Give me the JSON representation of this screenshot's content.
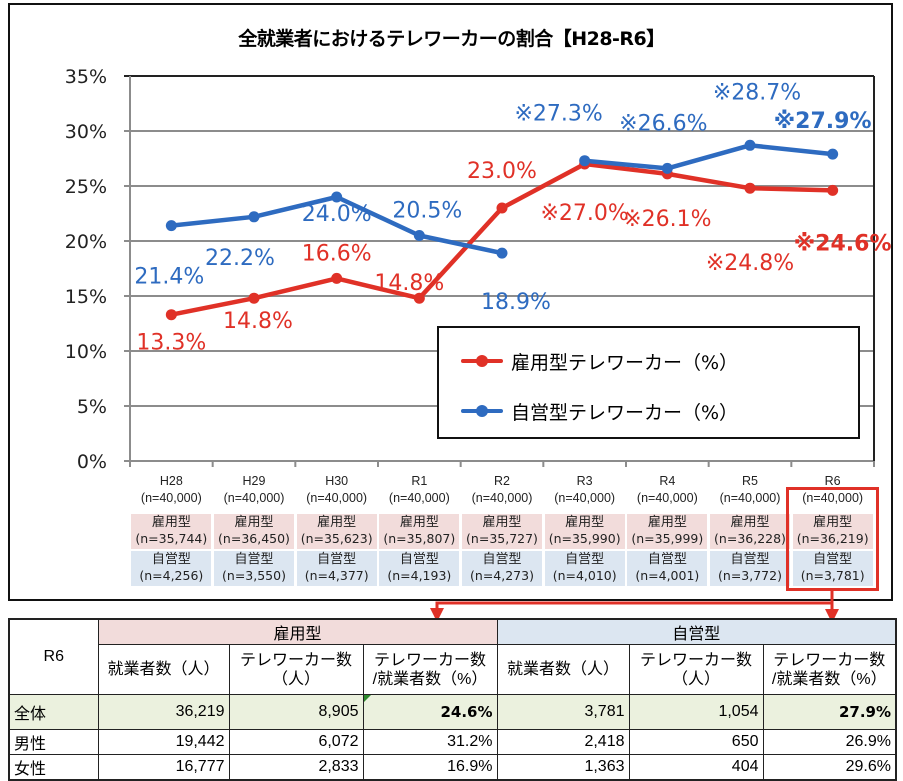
{
  "chart_data": {
    "type": "line",
    "title": "全就業者におけるテレワーカーの割合【H28-R6】",
    "xlabel": "",
    "ylabel": "",
    "ylim": [
      0,
      35
    ],
    "yticks": [
      "0%",
      "5%",
      "10%",
      "15%",
      "20%",
      "25%",
      "30%",
      "35%"
    ],
    "ytick_values": [
      0,
      5,
      10,
      15,
      20,
      25,
      30,
      35
    ],
    "grid": true,
    "legend_position": "lower-right",
    "categories": [
      "H28",
      "H29",
      "H30",
      "R1",
      "R2",
      "R3",
      "R4",
      "R5",
      "R6"
    ],
    "category_totals": [
      "(n=40,000)",
      "(n=40,000)",
      "(n=40,000)",
      "(n=40,000)",
      "(n=40,000)",
      "(n=40,000)",
      "(n=40,000)",
      "(n=40,000)",
      "(n=40,000)"
    ],
    "series": [
      {
        "name": "雇用型テレワーカー（%）",
        "color": "#e03127",
        "values": [
          13.3,
          14.8,
          16.6,
          14.8,
          23.0,
          27.0,
          26.1,
          24.8,
          24.6
        ],
        "labels": [
          "13.3%",
          "14.8%",
          "16.6%",
          "14.8%",
          "23.0%",
          "※27.0%",
          "※26.1%",
          "※24.8%",
          "※24.6%"
        ],
        "segments_break_after": [],
        "sample_label": "雇用型",
        "sample_sizes": [
          "(n=35,744)",
          "(n=36,450)",
          "(n=35,623)",
          "(n=35,807)",
          "(n=35,727)",
          "(n=35,990)",
          "(n=35,999)",
          "(n=36,228)",
          "(n=36,219)"
        ]
      },
      {
        "name": "自営型テレワーカー（%）",
        "color": "#2e6bc0",
        "values": [
          21.4,
          22.2,
          24.0,
          20.5,
          18.9,
          27.3,
          26.6,
          28.7,
          27.9
        ],
        "labels": [
          "21.4%",
          "22.2%",
          "24.0%",
          "20.5%",
          "18.9%",
          "※27.3%",
          "※26.6%",
          "※28.7%",
          "※27.9%"
        ],
        "segments_break_after": [
          4
        ],
        "sample_label": "自営型",
        "sample_sizes": [
          "(n=4,256)",
          "(n=3,550)",
          "(n=4,377)",
          "(n=4,193)",
          "(n=4,273)",
          "(n=4,010)",
          "(n=4,001)",
          "(n=3,772)",
          "(n=3,781)"
        ]
      }
    ],
    "highlighted_category": "R6"
  },
  "detail_table": {
    "corner": "R6",
    "groups": [
      "雇用型",
      "自営型"
    ],
    "columns": [
      "就業者数（人）",
      "テレワーカー数（人）",
      "テレワーカー数/就業者数（%）"
    ],
    "column_lines": [
      [
        "就業者数（人）"
      ],
      [
        "テレワーカー数",
        "（人）"
      ],
      [
        "テレワーカー数",
        "/就業者数（%）"
      ]
    ],
    "rows": [
      {
        "label": "全体",
        "values": [
          "36,219",
          "8,905",
          "24.6%",
          "3,781",
          "1,054",
          "27.9%"
        ]
      },
      {
        "label": "男性",
        "values": [
          "19,442",
          "6,072",
          "31.2%",
          "2,418",
          "650",
          "26.9%"
        ]
      },
      {
        "label": "女性",
        "values": [
          "16,777",
          "2,833",
          "16.9%",
          "1,363",
          "404",
          "29.6%"
        ]
      }
    ]
  },
  "colors": {
    "employed": "#e03127",
    "self_employed": "#2e6bc0",
    "employed_fill": "#f2dcdb",
    "self_employed_fill": "#dce6f1",
    "total_row_fill": "#ebf1de",
    "highlight": "#e03127"
  }
}
